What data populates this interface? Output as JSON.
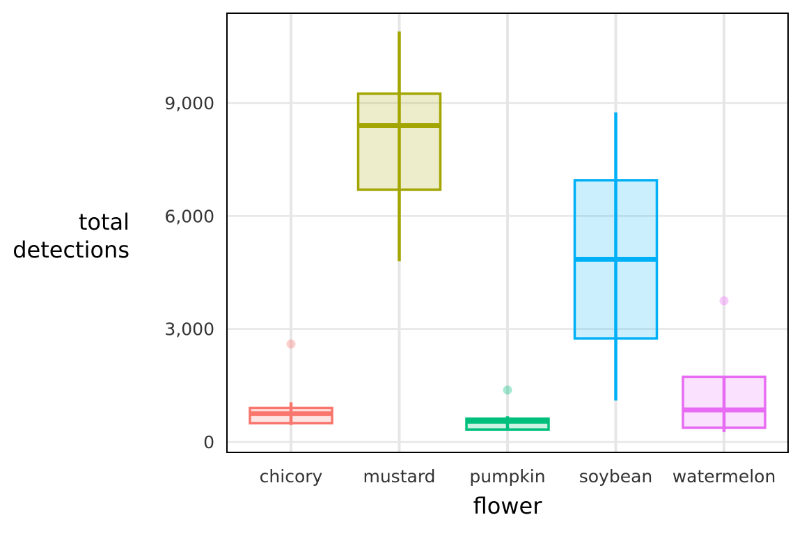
{
  "chart_data": {
    "type": "boxplot",
    "xlabel": "flower",
    "ylabel": "total\ndetections",
    "ylim": [
      -250,
      11300
    ],
    "y_ticks": [
      0,
      3000,
      6000,
      9000
    ],
    "y_tick_labels": [
      "0",
      "3,000",
      "6,000",
      "9,000"
    ],
    "grid": true,
    "categories": [
      "chicory",
      "mustard",
      "pumpkin",
      "soybean",
      "watermelon"
    ],
    "colors": [
      "#F8766D",
      "#A3A500",
      "#00BF7D",
      "#00B0F6",
      "#E76BF3"
    ],
    "boxes": [
      {
        "category": "chicory",
        "min": 450,
        "q1": 500,
        "median": 750,
        "q3": 900,
        "max": 1050,
        "outliers": [
          2600
        ]
      },
      {
        "category": "mustard",
        "min": 4800,
        "q1": 6700,
        "median": 8400,
        "q3": 9250,
        "max": 10900,
        "outliers": []
      },
      {
        "category": "pumpkin",
        "min": 320,
        "q1": 330,
        "median": 550,
        "q3": 620,
        "max": 680,
        "outliers": [
          1380
        ]
      },
      {
        "category": "soybean",
        "min": 1100,
        "q1": 2750,
        "median": 4850,
        "q3": 6950,
        "max": 8750,
        "outliers": []
      },
      {
        "category": "watermelon",
        "min": 260,
        "q1": 380,
        "median": 850,
        "q3": 1730,
        "max": 1730,
        "outliers": [
          3750
        ]
      }
    ]
  }
}
